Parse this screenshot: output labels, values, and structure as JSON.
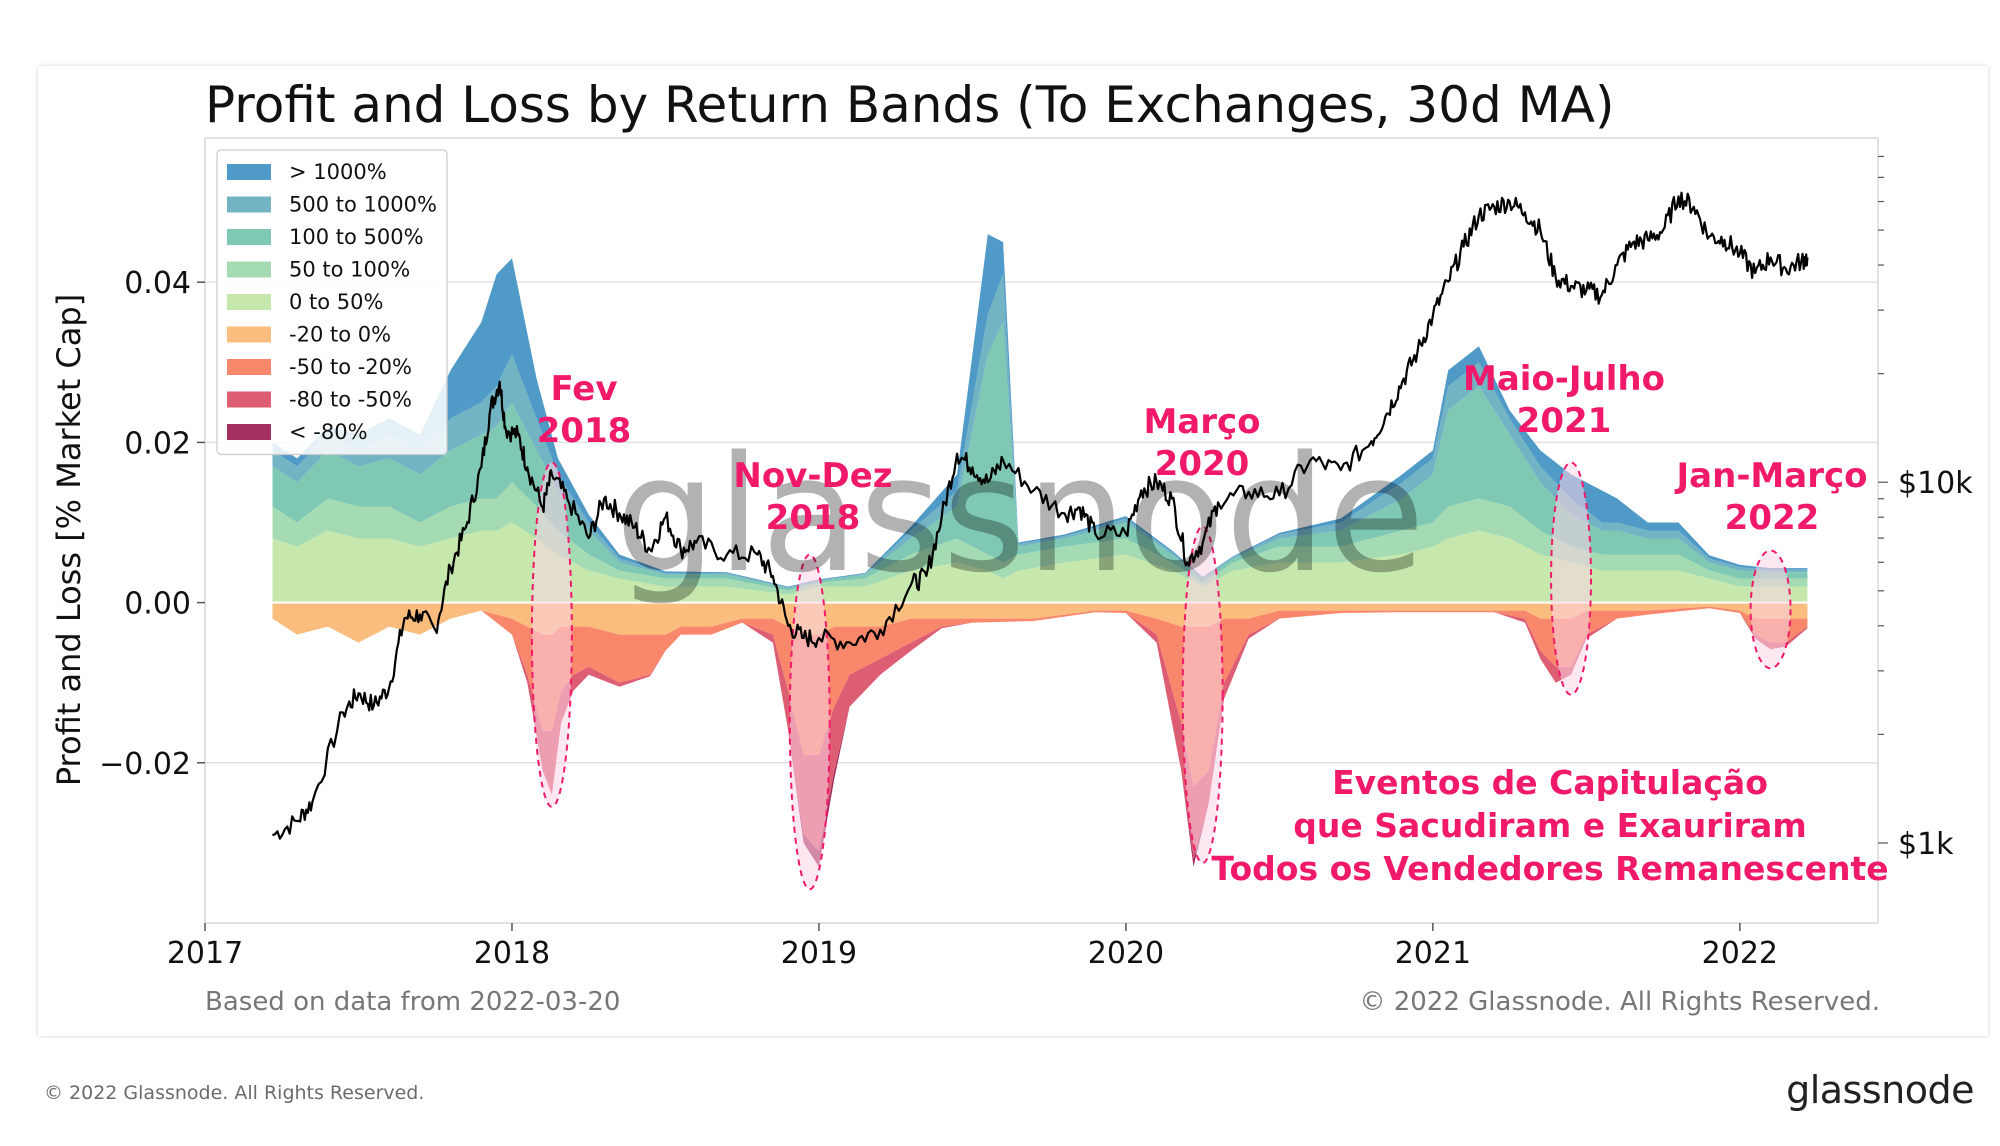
{
  "chart_data": {
    "type": "area",
    "title": "Profit and Loss by Return Bands (To Exchanges, 30d MA)",
    "ylabel": "Profit and Loss [% Market Cap]",
    "ylim": [
      -0.04,
      0.058
    ],
    "yticks": [
      {
        "value": 0.04,
        "label": "0.04"
      },
      {
        "value": 0.02,
        "label": "0.02"
      },
      {
        "value": 0.0,
        "label": "0.00"
      },
      {
        "value": -0.02,
        "label": "−0.02"
      }
    ],
    "xlim": [
      2017.0,
      2022.45
    ],
    "xticks": [
      {
        "value": 2017,
        "label": "2017"
      },
      {
        "value": 2018,
        "label": "2018"
      },
      {
        "value": 2019,
        "label": "2019"
      },
      {
        "value": 2020,
        "label": "2020"
      },
      {
        "value": 2021,
        "label": "2021"
      },
      {
        "value": 2022,
        "label": "2022"
      }
    ],
    "price_axis": {
      "scale": "log",
      "range": [
        600,
        90000
      ],
      "ticks": [
        {
          "value": 10000,
          "label": "$10k"
        },
        {
          "value": 1000,
          "label": "$1k"
        }
      ]
    },
    "legend": {
      "position": "top-left",
      "entries": [
        {
          "label": "> 1000%",
          "color": "#4f9ac7"
        },
        {
          "label": "500 to 1000%",
          "color": "#72b3c4"
        },
        {
          "label": "100 to 500%",
          "color": "#7fc9b4"
        },
        {
          "label": "50 to 100%",
          "color": "#a4dbb2"
        },
        {
          "label": "0 to 50%",
          "color": "#c6e8ad"
        },
        {
          "label": "-20 to 0%",
          "color": "#fbbd7e"
        },
        {
          "label": "-50 to -20%",
          "color": "#f8876b"
        },
        {
          "label": "-80 to -50%",
          "color": "#dd5e72"
        },
        {
          "label": "< -80%",
          "color": "#a5305f"
        }
      ]
    },
    "profit_series": {
      "x": [
        2017.22,
        2017.3,
        2017.4,
        2017.5,
        2017.6,
        2017.7,
        2017.8,
        2017.9,
        2017.95,
        2018.0,
        2018.08,
        2018.15,
        2018.25,
        2018.35,
        2018.5,
        2018.7,
        2018.9,
        2019.0,
        2019.15,
        2019.3,
        2019.45,
        2019.55,
        2019.6,
        2019.65,
        2019.8,
        2020.0,
        2020.15,
        2020.25,
        2020.35,
        2020.5,
        2020.7,
        2020.9,
        2021.0,
        2021.05,
        2021.15,
        2021.25,
        2021.35,
        2021.45,
        2021.55,
        2021.6,
        2021.7,
        2021.8,
        2021.9,
        2022.0,
        2022.1,
        2022.22
      ],
      "bands": [
        {
          "name": "0 to 50%",
          "values": [
            0.008,
            0.007,
            0.009,
            0.008,
            0.008,
            0.007,
            0.008,
            0.009,
            0.009,
            0.01,
            0.008,
            0.006,
            0.004,
            0.003,
            0.002,
            0.002,
            0.001,
            0.002,
            0.002,
            0.004,
            0.005,
            0.004,
            0.003,
            0.004,
            0.005,
            0.006,
            0.004,
            0.002,
            0.004,
            0.005,
            0.005,
            0.006,
            0.007,
            0.008,
            0.009,
            0.008,
            0.006,
            0.005,
            0.004,
            0.004,
            0.004,
            0.004,
            0.003,
            0.002,
            0.002,
            0.002
          ]
        },
        {
          "name": "50 to 100%",
          "values": [
            0.004,
            0.003,
            0.004,
            0.004,
            0.004,
            0.003,
            0.004,
            0.004,
            0.004,
            0.005,
            0.004,
            0.003,
            0.002,
            0.001,
            0.001,
            0.001,
            0.0005,
            0.0005,
            0.001,
            0.002,
            0.003,
            0.002,
            0.002,
            0.002,
            0.002,
            0.002,
            0.001,
            0.0005,
            0.001,
            0.002,
            0.002,
            0.003,
            0.003,
            0.004,
            0.004,
            0.004,
            0.003,
            0.002,
            0.002,
            0.002,
            0.002,
            0.002,
            0.001,
            0.001,
            0.001,
            0.001
          ]
        },
        {
          "name": "100 to 500%",
          "values": [
            0.005,
            0.005,
            0.006,
            0.005,
            0.006,
            0.006,
            0.007,
            0.008,
            0.009,
            0.01,
            0.007,
            0.005,
            0.003,
            0.001,
            0.0005,
            0.0005,
            0.0003,
            0.0002,
            0.0005,
            0.002,
            0.004,
            0.025,
            0.03,
            0.001,
            0.001,
            0.002,
            0.001,
            0.0005,
            0.0005,
            0.001,
            0.002,
            0.004,
            0.006,
            0.012,
            0.014,
            0.009,
            0.006,
            0.004,
            0.003,
            0.003,
            0.002,
            0.002,
            0.001,
            0.001,
            0.0008,
            0.0008
          ]
        },
        {
          "name": "500 to 1000%",
          "values": [
            0.002,
            0.002,
            0.002,
            0.002,
            0.003,
            0.003,
            0.004,
            0.004,
            0.005,
            0.006,
            0.004,
            0.002,
            0.001,
            0.0005,
            0.0002,
            0.0002,
            0.0001,
            0.0001,
            0.0001,
            0.001,
            0.002,
            0.005,
            0.006,
            0.0003,
            0.0003,
            0.0005,
            0.0003,
            0.0001,
            0.0002,
            0.0005,
            0.001,
            0.002,
            0.002,
            0.003,
            0.003,
            0.002,
            0.002,
            0.002,
            0.001,
            0.001,
            0.001,
            0.001,
            0.0005,
            0.0004,
            0.0003,
            0.0003
          ]
        },
        {
          "name": "> 1000%",
          "values": [
            0.001,
            0.001,
            0.001,
            0.002,
            0.002,
            0.002,
            0.006,
            0.01,
            0.014,
            0.012,
            0.005,
            0.002,
            0.001,
            0.0005,
            0.0002,
            0.0001,
            0.0001,
            0.0001,
            0.0001,
            0.0005,
            0.002,
            0.01,
            0.004,
            0.0002,
            0.0002,
            0.0003,
            0.0002,
            0.0001,
            0.0001,
            0.0002,
            0.0005,
            0.001,
            0.001,
            0.002,
            0.002,
            0.001,
            0.002,
            0.003,
            0.004,
            0.003,
            0.001,
            0.001,
            0.0004,
            0.0003,
            0.0002,
            0.0002
          ]
        }
      ]
    },
    "loss_series": {
      "x": [
        2017.22,
        2017.3,
        2017.4,
        2017.5,
        2017.6,
        2017.7,
        2017.8,
        2017.9,
        2018.0,
        2018.05,
        2018.1,
        2018.13,
        2018.16,
        2018.2,
        2018.25,
        2018.35,
        2018.45,
        2018.5,
        2018.55,
        2018.65,
        2018.75,
        2018.85,
        2018.9,
        2018.95,
        2019.0,
        2019.05,
        2019.1,
        2019.2,
        2019.3,
        2019.4,
        2019.5,
        2019.7,
        2019.9,
        2020.0,
        2020.1,
        2020.18,
        2020.22,
        2020.27,
        2020.32,
        2020.4,
        2020.5,
        2020.7,
        2020.9,
        2021.0,
        2021.2,
        2021.3,
        2021.35,
        2021.4,
        2021.45,
        2021.5,
        2021.6,
        2021.7,
        2021.9,
        2022.0,
        2022.05,
        2022.1,
        2022.15,
        2022.22
      ],
      "bands": [
        {
          "name": "-20 to 0%",
          "values": [
            -0.002,
            -0.004,
            -0.003,
            -0.005,
            -0.003,
            -0.004,
            -0.002,
            -0.001,
            -0.002,
            -0.003,
            -0.004,
            -0.004,
            -0.003,
            -0.003,
            -0.003,
            -0.004,
            -0.004,
            -0.004,
            -0.003,
            -0.003,
            -0.002,
            -0.002,
            -0.003,
            -0.004,
            -0.004,
            -0.003,
            -0.003,
            -0.003,
            -0.002,
            -0.002,
            -0.002,
            -0.002,
            -0.001,
            -0.001,
            -0.002,
            -0.003,
            -0.003,
            -0.003,
            -0.002,
            -0.002,
            -0.001,
            -0.001,
            -0.001,
            -0.001,
            -0.001,
            -0.001,
            -0.002,
            -0.002,
            -0.002,
            -0.001,
            -0.001,
            -0.001,
            -0.0005,
            -0.001,
            -0.002,
            -0.002,
            -0.002,
            -0.002
          ]
        },
        {
          "name": "-50 to -20%",
          "values": [
            0.0,
            0.0,
            0.0,
            0.0,
            0.0,
            0.0,
            0.0,
            0.0,
            -0.002,
            -0.006,
            -0.012,
            -0.012,
            -0.008,
            -0.006,
            -0.005,
            -0.006,
            -0.005,
            -0.002,
            -0.001,
            -0.001,
            -0.0005,
            -0.002,
            -0.008,
            -0.015,
            -0.015,
            -0.01,
            -0.006,
            -0.004,
            -0.003,
            -0.001,
            -0.0005,
            -0.0003,
            -0.0002,
            -0.0003,
            -0.002,
            -0.012,
            -0.02,
            -0.018,
            -0.008,
            -0.002,
            -0.001,
            -0.0003,
            -0.0002,
            -0.0002,
            -0.0002,
            -0.001,
            -0.004,
            -0.006,
            -0.006,
            -0.003,
            -0.001,
            -0.0005,
            -0.0002,
            -0.0003,
            -0.002,
            -0.003,
            -0.003,
            -0.001
          ]
        },
        {
          "name": "-80 to -50%",
          "values": [
            0.0,
            0.0,
            0.0,
            0.0,
            0.0,
            0.0,
            0.0,
            0.0,
            0.0,
            -0.001,
            -0.005,
            -0.008,
            -0.004,
            -0.002,
            -0.001,
            -0.0005,
            -0.0002,
            0.0,
            0.0,
            0.0,
            0.0,
            -0.001,
            -0.005,
            -0.01,
            -0.012,
            -0.008,
            -0.004,
            -0.002,
            -0.001,
            -0.0002,
            0.0,
            0.0,
            0.0,
            0.0,
            -0.001,
            -0.006,
            -0.009,
            -0.004,
            -0.002,
            -0.0005,
            0.0,
            0.0,
            0.0,
            0.0,
            0.0,
            -0.0005,
            -0.001,
            -0.002,
            -0.001,
            -0.0005,
            0.0,
            0.0,
            0.0,
            0.0,
            -0.0005,
            -0.0008,
            -0.0005,
            -0.0002
          ]
        },
        {
          "name": "< -80%",
          "values": [
            0.0,
            0.0,
            0.0,
            0.0,
            0.0,
            0.0,
            0.0,
            0.0,
            0.0,
            0.0,
            0.0,
            0.0,
            0.0,
            0.0,
            0.0,
            0.0,
            0.0,
            0.0,
            0.0,
            0.0,
            0.0,
            0.0,
            0.0,
            -0.001,
            -0.002,
            -0.001,
            0.0,
            0.0,
            0.0,
            0.0,
            0.0,
            0.0,
            0.0,
            0.0,
            0.0,
            0.0,
            -0.001,
            0.0,
            0.0,
            0.0,
            0.0,
            0.0,
            0.0,
            0.0,
            0.0,
            0.0,
            0.0,
            0.0,
            0.0,
            0.0,
            0.0,
            0.0,
            0.0,
            0.0,
            0.0,
            0.0,
            0.0,
            0.0
          ]
        }
      ]
    },
    "price_series": {
      "name": "BTC price",
      "color": "#000000",
      "x": [
        2017.22,
        2017.3,
        2017.35,
        2017.45,
        2017.5,
        2017.55,
        2017.6,
        2017.65,
        2017.7,
        2017.75,
        2017.8,
        2017.85,
        2017.9,
        2017.93,
        2017.96,
        2017.98,
        2018.02,
        2018.05,
        2018.1,
        2018.13,
        2018.18,
        2018.25,
        2018.3,
        2018.35,
        2018.4,
        2018.45,
        2018.5,
        2018.55,
        2018.6,
        2018.7,
        2018.8,
        2018.85,
        2018.9,
        2018.95,
        2019.0,
        2019.1,
        2019.2,
        2019.3,
        2019.35,
        2019.4,
        2019.45,
        2019.5,
        2019.55,
        2019.6,
        2019.7,
        2019.8,
        2019.85,
        2019.9,
        2020.0,
        2020.05,
        2020.1,
        2020.15,
        2020.2,
        2020.25,
        2020.3,
        2020.4,
        2020.5,
        2020.6,
        2020.7,
        2020.8,
        2020.85,
        2020.9,
        2020.95,
        2021.0,
        2021.05,
        2021.1,
        2021.15,
        2021.2,
        2021.25,
        2021.3,
        2021.35,
        2021.4,
        2021.45,
        2021.5,
        2021.55,
        2021.6,
        2021.65,
        2021.7,
        2021.75,
        2021.8,
        2021.85,
        2021.9,
        2021.95,
        2022.0,
        2022.05,
        2022.1,
        2022.15,
        2022.2,
        2022.22
      ],
      "y": [
        1050,
        1150,
        1300,
        2300,
        2600,
        2400,
        2700,
        4200,
        4300,
        3900,
        5800,
        7500,
        11000,
        16000,
        19000,
        14000,
        13500,
        11000,
        8500,
        10500,
        9000,
        7000,
        9000,
        8200,
        7500,
        6500,
        8000,
        6500,
        6800,
        6300,
        6300,
        5500,
        4000,
        3700,
        3700,
        3600,
        3900,
        5200,
        5500,
        8000,
        12000,
        11000,
        10000,
        11500,
        9500,
        8200,
        8500,
        7200,
        7200,
        9500,
        10000,
        9000,
        6000,
        6800,
        8800,
        9400,
        9200,
        11500,
        10800,
        13000,
        15500,
        19000,
        23000,
        29000,
        36000,
        45000,
        55000,
        58000,
        60000,
        56000,
        50000,
        37000,
        35000,
        34000,
        33000,
        40000,
        46000,
        47000,
        50000,
        62000,
        58000,
        48000,
        47000,
        43000,
        38000,
        42000,
        39000,
        41000,
        42000
      ]
    },
    "annotations": [
      {
        "lines": [
          "Fev",
          "2018"
        ],
        "x": 2018.13
      },
      {
        "lines": [
          "Nov-Dez",
          "2018"
        ],
        "x": 2018.97
      },
      {
        "lines": [
          "Março",
          "2020"
        ],
        "x": 2020.25
      },
      {
        "lines": [
          "Maio-Julho",
          "2021"
        ],
        "x": 2021.45
      },
      {
        "lines": [
          "Jan-Março",
          "2022"
        ],
        "x": 2022.1
      }
    ],
    "capitulation_note": [
      "Eventos de Capitulação",
      "que Sacudiram e Exauriram",
      "Todos os Vendedores Remanescente"
    ],
    "watermark": "glassnode",
    "source_note": "Based on data from 2022-03-20",
    "copyright_inner": "© 2022 Glassnode. All Rights Reserved."
  },
  "footer": {
    "copyright": "© 2022 Glassnode. All Rights Reserved.",
    "brand": "glassnode"
  },
  "colors": {
    "annotation": "#f0196a",
    "highlight_fill": "#fbd3e6"
  }
}
